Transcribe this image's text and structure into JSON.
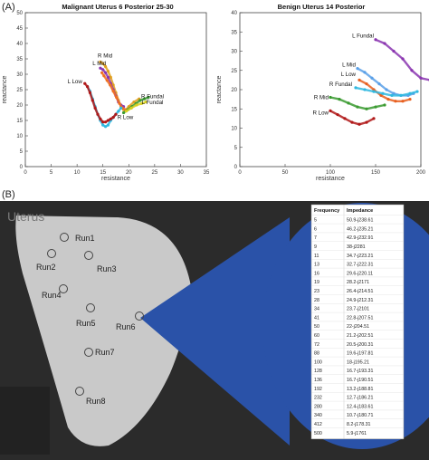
{
  "panel_a_label": "(A)",
  "panel_b_label": "(B)",
  "chart_data": [
    {
      "type": "scatter",
      "title": "Malignant Uterus 6 Posterior 25-30",
      "xlabel": "resistance",
      "ylabel": "reactance",
      "xlim": [
        0,
        35
      ],
      "ylim": [
        0,
        50
      ],
      "xticks": [
        0,
        50,
        100,
        150,
        200,
        250,
        300,
        350
      ],
      "xtick_labels": [
        "0",
        "5",
        "10",
        "15",
        "20",
        "25",
        "30",
        "35"
      ],
      "yticks": [
        0,
        5,
        10,
        15,
        20,
        25,
        30,
        35,
        40,
        45,
        50
      ],
      "grid": false,
      "series": [
        {
          "name": "R Mid",
          "color": "#e0a020",
          "x": [
            145,
            150,
            155,
            160,
            165,
            170,
            175,
            180,
            185,
            190,
            195,
            200,
            210,
            220
          ],
          "y": [
            34,
            33.5,
            32.5,
            31,
            29,
            26.5,
            24,
            21.5,
            19.5,
            18.5,
            18.5,
            19.5,
            21,
            22
          ]
        },
        {
          "name": "L Mid",
          "color": "#8a35b0",
          "x": [
            145,
            150,
            155,
            160,
            165,
            170,
            175,
            180,
            185,
            190
          ],
          "y": [
            32,
            31.5,
            30.5,
            29,
            27,
            25,
            23,
            21,
            20,
            19.5
          ]
        },
        {
          "name": "",
          "color": "#f07020",
          "x": [
            148,
            152,
            158,
            164,
            170,
            176,
            182,
            188,
            194
          ],
          "y": [
            30.5,
            29.5,
            28,
            26.5,
            24.5,
            22.5,
            20.5,
            19,
            18.5
          ]
        },
        {
          "name": "R Fundal",
          "color": "#3a9a30",
          "x": [
            190,
            198,
            206,
            214,
            222,
            230,
            238
          ],
          "y": [
            17.5,
            18.5,
            19.5,
            20.5,
            21.5,
            22,
            22.5
          ]
        },
        {
          "name": "L Fundal",
          "color": "#d8d020",
          "x": [
            195,
            205,
            215,
            225,
            233
          ],
          "y": [
            18,
            19,
            20,
            20.5,
            21
          ]
        },
        {
          "name": "L Low",
          "color": "#30b8e0",
          "x": [
            120,
            125,
            130,
            135,
            140,
            145,
            150,
            155,
            160,
            165,
            170,
            175,
            180,
            185
          ],
          "y": [
            26,
            24.5,
            22,
            19.5,
            17,
            15,
            13.5,
            13,
            13.5,
            15,
            16,
            17,
            18,
            19
          ]
        },
        {
          "name": "R Low",
          "color": "#b01818",
          "x": [
            115,
            120,
            125,
            130,
            135,
            140,
            145,
            150,
            155,
            160,
            165,
            170,
            175
          ],
          "y": [
            27,
            26,
            24,
            21.5,
            19,
            17,
            15.5,
            14.5,
            14.5,
            15,
            15.5,
            16,
            17
          ]
        }
      ],
      "annotations": [
        "R Mid",
        "L Mid",
        "L Low",
        "R Fundal",
        "L Fundal",
        "R Low"
      ]
    },
    {
      "type": "scatter",
      "title": "Benign Uterus 14 Posterior",
      "xlabel": "resistance",
      "ylabel": "reactance",
      "xlim": [
        0,
        250
      ],
      "ylim": [
        0,
        40
      ],
      "xticks": [
        0,
        50,
        100,
        150,
        200
      ],
      "xtick_labels": [
        "0",
        "50",
        "100",
        "150",
        "200"
      ],
      "yticks": [
        0,
        5,
        10,
        15,
        20,
        25,
        30,
        35,
        40
      ],
      "grid": false,
      "series": [
        {
          "name": "L Fundal",
          "color": "#8a35b0",
          "x": [
            150,
            160,
            170,
            180,
            190,
            200,
            210,
            220,
            230,
            238
          ],
          "y": [
            33,
            32,
            30,
            28,
            25,
            23,
            22.5,
            23,
            23.5,
            24
          ]
        },
        {
          "name": "L Mid",
          "color": "#5aa0e8",
          "x": [
            130,
            138,
            146,
            154,
            162,
            170,
            178,
            186,
            192
          ],
          "y": [
            25.5,
            24.5,
            23,
            21.5,
            20,
            19,
            18.5,
            18.5,
            19
          ]
        },
        {
          "name": "L Low",
          "color": "#e86020",
          "x": [
            132,
            140,
            148,
            156,
            164,
            172,
            180,
            188
          ],
          "y": [
            22.5,
            21.5,
            20,
            18.5,
            17.5,
            17,
            17,
            17.5
          ]
        },
        {
          "name": "R Fundal",
          "color": "#30b8e0",
          "x": [
            128,
            138,
            148,
            158,
            168,
            178,
            188,
            196
          ],
          "y": [
            20.5,
            20,
            19.5,
            19,
            18.5,
            18.5,
            19,
            19.5
          ]
        },
        {
          "name": "R Mid",
          "color": "#3a9a30",
          "x": [
            100,
            110,
            120,
            130,
            140,
            150,
            160
          ],
          "y": [
            18,
            17.5,
            16.5,
            15.5,
            15,
            15.5,
            16
          ]
        },
        {
          "name": "R Low",
          "color": "#b01818",
          "x": [
            100,
            108,
            116,
            124,
            132,
            140,
            148
          ],
          "y": [
            14.5,
            13.5,
            12.5,
            11.5,
            11,
            11.5,
            12.5
          ]
        }
      ],
      "annotations": [
        "L Fundal",
        "L Mid",
        "L Low",
        "R Fundal",
        "R Mid",
        "R Low"
      ]
    }
  ],
  "diagram": {
    "organ_label": "Uterus",
    "runs": [
      "Run1",
      "Run2",
      "Run3",
      "Run4",
      "Run5",
      "Run6",
      "Run7",
      "Run8"
    ],
    "table": {
      "headers": [
        "Frequency",
        "Impedance"
      ],
      "rows": [
        [
          "5",
          "50.9-j238.61"
        ],
        [
          "6",
          "46.2-j235.21"
        ],
        [
          "7",
          "42.9-j232.91"
        ],
        [
          "9",
          "38-j2281"
        ],
        [
          "11",
          "34.7-j223.21"
        ],
        [
          "13",
          "32.7-j222.31"
        ],
        [
          "16",
          "29.6-j220.11"
        ],
        [
          "19",
          "28.2-j2171"
        ],
        [
          "23",
          "26.4-j214.51"
        ],
        [
          "28",
          "24.9-j212.31"
        ],
        [
          "34",
          "23.7-j2101"
        ],
        [
          "41",
          "22.8-j207.51"
        ],
        [
          "50",
          "22-j204.51"
        ],
        [
          "60",
          "21.2-j202.51"
        ],
        [
          "72",
          "20.5-j200.31"
        ],
        [
          "88",
          "19.6-j197.81"
        ],
        [
          "100",
          "18-j195.21"
        ],
        [
          "128",
          "16.7-j193.31"
        ],
        [
          "136",
          "16.7-j190.51"
        ],
        [
          "192",
          "13.2-j188.81"
        ],
        [
          "232",
          "12.7-j186.21"
        ],
        [
          "280",
          "12.4-j183.61"
        ],
        [
          "340",
          "10.7-j180.71"
        ],
        [
          "412",
          "8.2-j178.31"
        ],
        [
          "500",
          "5.9-j1761"
        ]
      ]
    }
  }
}
